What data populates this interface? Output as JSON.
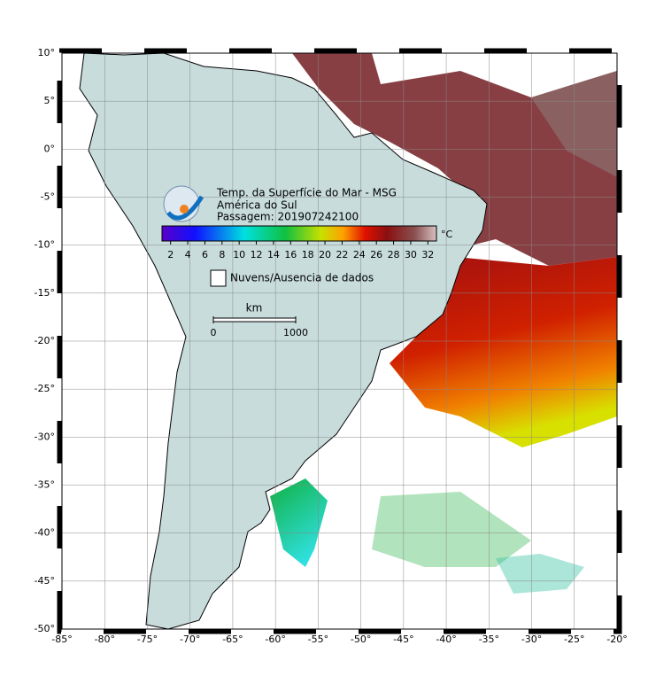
{
  "map": {
    "title_lines": [
      "Temp. da Superfície do Mar - MSG",
      "América do Sul",
      "Passagem: 201907242100"
    ],
    "colorbar": {
      "range": [
        1,
        33
      ],
      "ticks": [
        2,
        4,
        6,
        8,
        10,
        12,
        14,
        16,
        18,
        20,
        22,
        24,
        26,
        28,
        30,
        32
      ],
      "unit": "°C"
    },
    "legend": "Nuvens/Ausencia de dados",
    "scale": {
      "unit": "km",
      "ticks": [
        0,
        1000
      ]
    },
    "lon_range": [
      -85,
      -20
    ],
    "lat_range": [
      10,
      -50
    ],
    "lon_ticks": [
      {
        "value": -85,
        "label": "-85°"
      },
      {
        "value": -80,
        "label": "-80°"
      },
      {
        "value": -75,
        "label": "-75°"
      },
      {
        "value": -70,
        "label": "-70°"
      },
      {
        "value": -65,
        "label": "-65°"
      },
      {
        "value": -60,
        "label": "-60°"
      },
      {
        "value": -55,
        "label": "-55°"
      },
      {
        "value": -50,
        "label": "-50°"
      },
      {
        "value": -45,
        "label": "-45°"
      },
      {
        "value": -40,
        "label": "-40°"
      },
      {
        "value": -35,
        "label": "-35°"
      },
      {
        "value": -30,
        "label": "-30°"
      },
      {
        "value": -25,
        "label": "-25°"
      },
      {
        "value": -20,
        "label": "-20°"
      }
    ],
    "lat_ticks": [
      {
        "value": 10,
        "label": "10°"
      },
      {
        "value": 5,
        "label": "5°"
      },
      {
        "value": 0,
        "label": "0°"
      },
      {
        "value": -5,
        "label": "-5°"
      },
      {
        "value": -10,
        "label": "-10°"
      },
      {
        "value": -15,
        "label": "-15°"
      },
      {
        "value": -20,
        "label": "-20°"
      },
      {
        "value": -25,
        "label": "-25°"
      },
      {
        "value": -30,
        "label": "-30°"
      },
      {
        "value": -35,
        "label": "-35°"
      },
      {
        "value": -40,
        "label": "-40°"
      },
      {
        "value": -45,
        "label": "-45°"
      },
      {
        "value": -50,
        "label": "-50°"
      }
    ]
  }
}
